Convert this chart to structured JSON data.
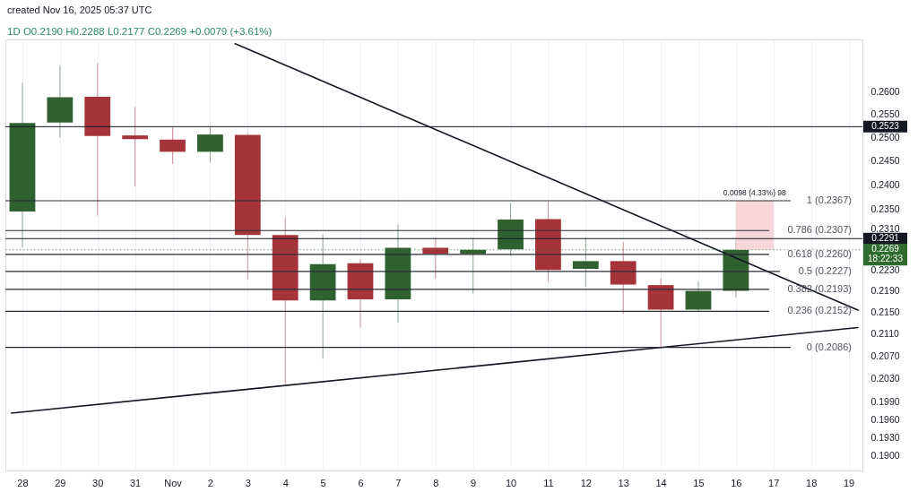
{
  "chart_data": {
    "type": "candlestick",
    "title": "1D O0.2190 H0.2288 L0.2177 C0.2269 +0.0079 (+3.61%)",
    "annotations": [
      "created Nov 16, 2025 05:37 UTC"
    ],
    "x": [
      "2025-10-28",
      "2025-10-29",
      "2025-10-30",
      "2025-10-31",
      "2025-11-01",
      "2025-11-02",
      "2025-11-03",
      "2025-11-04",
      "2025-11-05",
      "2025-11-06",
      "2025-11-07",
      "2025-11-08",
      "2025-11-09",
      "2025-11-10",
      "2025-11-11",
      "2025-11-12",
      "2025-11-13",
      "2025-11-14",
      "2025-11-15",
      "2025-11-16"
    ],
    "ohlc": [
      [
        0.2345,
        0.262,
        0.2274,
        0.2531
      ],
      [
        0.2532,
        0.266,
        0.25,
        0.2588
      ],
      [
        0.2589,
        0.2665,
        0.2337,
        0.2503
      ],
      [
        0.2504,
        0.2566,
        0.2396,
        0.2496
      ],
      [
        0.2495,
        0.2522,
        0.2443,
        0.2469
      ],
      [
        0.2469,
        0.2522,
        0.2446,
        0.2506
      ],
      [
        0.2505,
        0.2509,
        0.2212,
        0.2298
      ],
      [
        0.2298,
        0.2334,
        0.2021,
        0.2172
      ],
      [
        0.2172,
        0.2299,
        0.2066,
        0.2241
      ],
      [
        0.2243,
        0.225,
        0.2122,
        0.2174
      ],
      [
        0.2174,
        0.2318,
        0.2131,
        0.2273
      ],
      [
        0.2273,
        0.2292,
        0.2213,
        0.2261
      ],
      [
        0.2261,
        0.2292,
        0.2185,
        0.2269
      ],
      [
        0.227,
        0.2363,
        0.2257,
        0.2329
      ],
      [
        0.233,
        0.2365,
        0.2208,
        0.223
      ],
      [
        0.2232,
        0.2292,
        0.2198,
        0.2247
      ],
      [
        0.2247,
        0.2284,
        0.2147,
        0.2202
      ],
      [
        0.2201,
        0.2214,
        0.2086,
        0.2155
      ],
      [
        0.2155,
        0.2208,
        0.2152,
        0.219
      ],
      [
        0.219,
        0.2288,
        0.2177,
        0.2269
      ]
    ],
    "colors": [
      "#2f6131",
      "#2f6131",
      "#a5343a",
      "#a5343a",
      "#a5343a",
      "#2f6131",
      "#a5343a",
      "#a5343a",
      "#2f6131",
      "#a5343a",
      "#2f6131",
      "#a5343a",
      "#2f6131",
      "#2f6131",
      "#a5343a",
      "#2f6131",
      "#a5343a",
      "#a5343a",
      "#2f6131",
      "#2f6131"
    ],
    "series": [
      {
        "type": "line",
        "x": [
          "2025-11-02T16:00",
          "2025-11-19T06:00"
        ],
        "values": [
          0.271,
          0.2154
        ],
        "color": "#131722"
      },
      {
        "type": "line",
        "x": [
          "2025-10-27T17:00",
          "2025-11-19T06:00"
        ],
        "values": [
          0.1971,
          0.2122
        ],
        "color": "#131722"
      },
      {
        "type": "bar",
        "x": [
          "2025-11-16T12:00"
        ],
        "base": [
          0.2269
        ],
        "values": [
          0.0098
        ],
        "color": "#f7d3d6",
        "value_labels": [
          "0.0098 (4.33%) 98"
        ]
      }
    ],
    "ref_lines": [
      {
        "axis": "y",
        "value": 0.2523,
        "label": "0.2523",
        "color": "#131722"
      },
      {
        "axis": "y",
        "value": 0.2291,
        "label": "0.2291",
        "color": "#131722"
      },
      {
        "axis": "y",
        "value": 0.2269,
        "label": "0.2269\n18:22:33",
        "color": "#2e6b2e",
        "line_style": "dotted"
      },
      {
        "axis": "y",
        "value": 0.2367,
        "label": "1 (0.2367)"
      },
      {
        "axis": "y",
        "value": 0.2307,
        "label": "0.786 (0.2307)"
      },
      {
        "axis": "y",
        "value": 0.226,
        "label": "0.618 (0.2260)"
      },
      {
        "axis": "y",
        "value": 0.2227,
        "label": "0.5 (0.2227)"
      },
      {
        "axis": "y",
        "value": 0.2193,
        "label": "0.382 (0.2193)"
      },
      {
        "axis": "y",
        "value": 0.2152,
        "label": "0.236 (0.2152)"
      },
      {
        "axis": "y",
        "value": 0.2086,
        "label": "0 (0.2086)"
      }
    ],
    "xlim": [
      "2025-10-27T16:00",
      "2025-11-19T06:00"
    ],
    "ylim": [
      0.1876,
      0.272
    ],
    "xticks": [
      {
        "value": "2025-10-28",
        "label": "28"
      },
      {
        "value": "2025-10-29",
        "label": "29"
      },
      {
        "value": "2025-10-30",
        "label": "30"
      },
      {
        "value": "2025-10-31",
        "label": "31"
      },
      {
        "value": "2025-11-01",
        "label": "Nov"
      },
      {
        "value": "2025-11-02",
        "label": "2"
      },
      {
        "value": "2025-11-03",
        "label": "3"
      },
      {
        "value": "2025-11-04",
        "label": "4"
      },
      {
        "value": "2025-11-05",
        "label": "5"
      },
      {
        "value": "2025-11-06",
        "label": "6"
      },
      {
        "value": "2025-11-07",
        "label": "7"
      },
      {
        "value": "2025-11-08",
        "label": "8"
      },
      {
        "value": "2025-11-09",
        "label": "9"
      },
      {
        "value": "2025-11-10",
        "label": "10"
      },
      {
        "value": "2025-11-11",
        "label": "11"
      },
      {
        "value": "2025-11-12",
        "label": "12"
      },
      {
        "value": "2025-11-13",
        "label": "13"
      },
      {
        "value": "2025-11-14",
        "label": "14"
      },
      {
        "value": "2025-11-15",
        "label": "15"
      },
      {
        "value": "2025-11-16",
        "label": "16"
      },
      {
        "value": "2025-11-17",
        "label": "17"
      },
      {
        "value": "2025-11-18",
        "label": "18"
      },
      {
        "value": "2025-11-19",
        "label": "19"
      }
    ],
    "yticks": [
      {
        "value": 0.26,
        "label": "0.2600"
      },
      {
        "value": 0.255,
        "label": "0.2550"
      },
      {
        "value": 0.25,
        "label": "0.2500"
      },
      {
        "value": 0.245,
        "label": "0.2450"
      },
      {
        "value": 0.24,
        "label": "0.2400"
      },
      {
        "value": 0.235,
        "label": "0.2350"
      },
      {
        "value": 0.231,
        "label": "0.2310"
      },
      {
        "value": 0.223,
        "label": "0.2230"
      },
      {
        "value": 0.219,
        "label": "0.2190"
      },
      {
        "value": 0.215,
        "label": "0.2150"
      },
      {
        "value": 0.211,
        "label": "0.2110"
      },
      {
        "value": 0.207,
        "label": "0.2070"
      },
      {
        "value": 0.203,
        "label": "0.2030"
      },
      {
        "value": 0.199,
        "label": "0.1990"
      },
      {
        "value": 0.196,
        "label": "0.1960"
      },
      {
        "value": 0.193,
        "label": "0.1930"
      },
      {
        "value": 0.19,
        "label": "0.1900"
      }
    ],
    "log": true,
    "grid": "x"
  }
}
